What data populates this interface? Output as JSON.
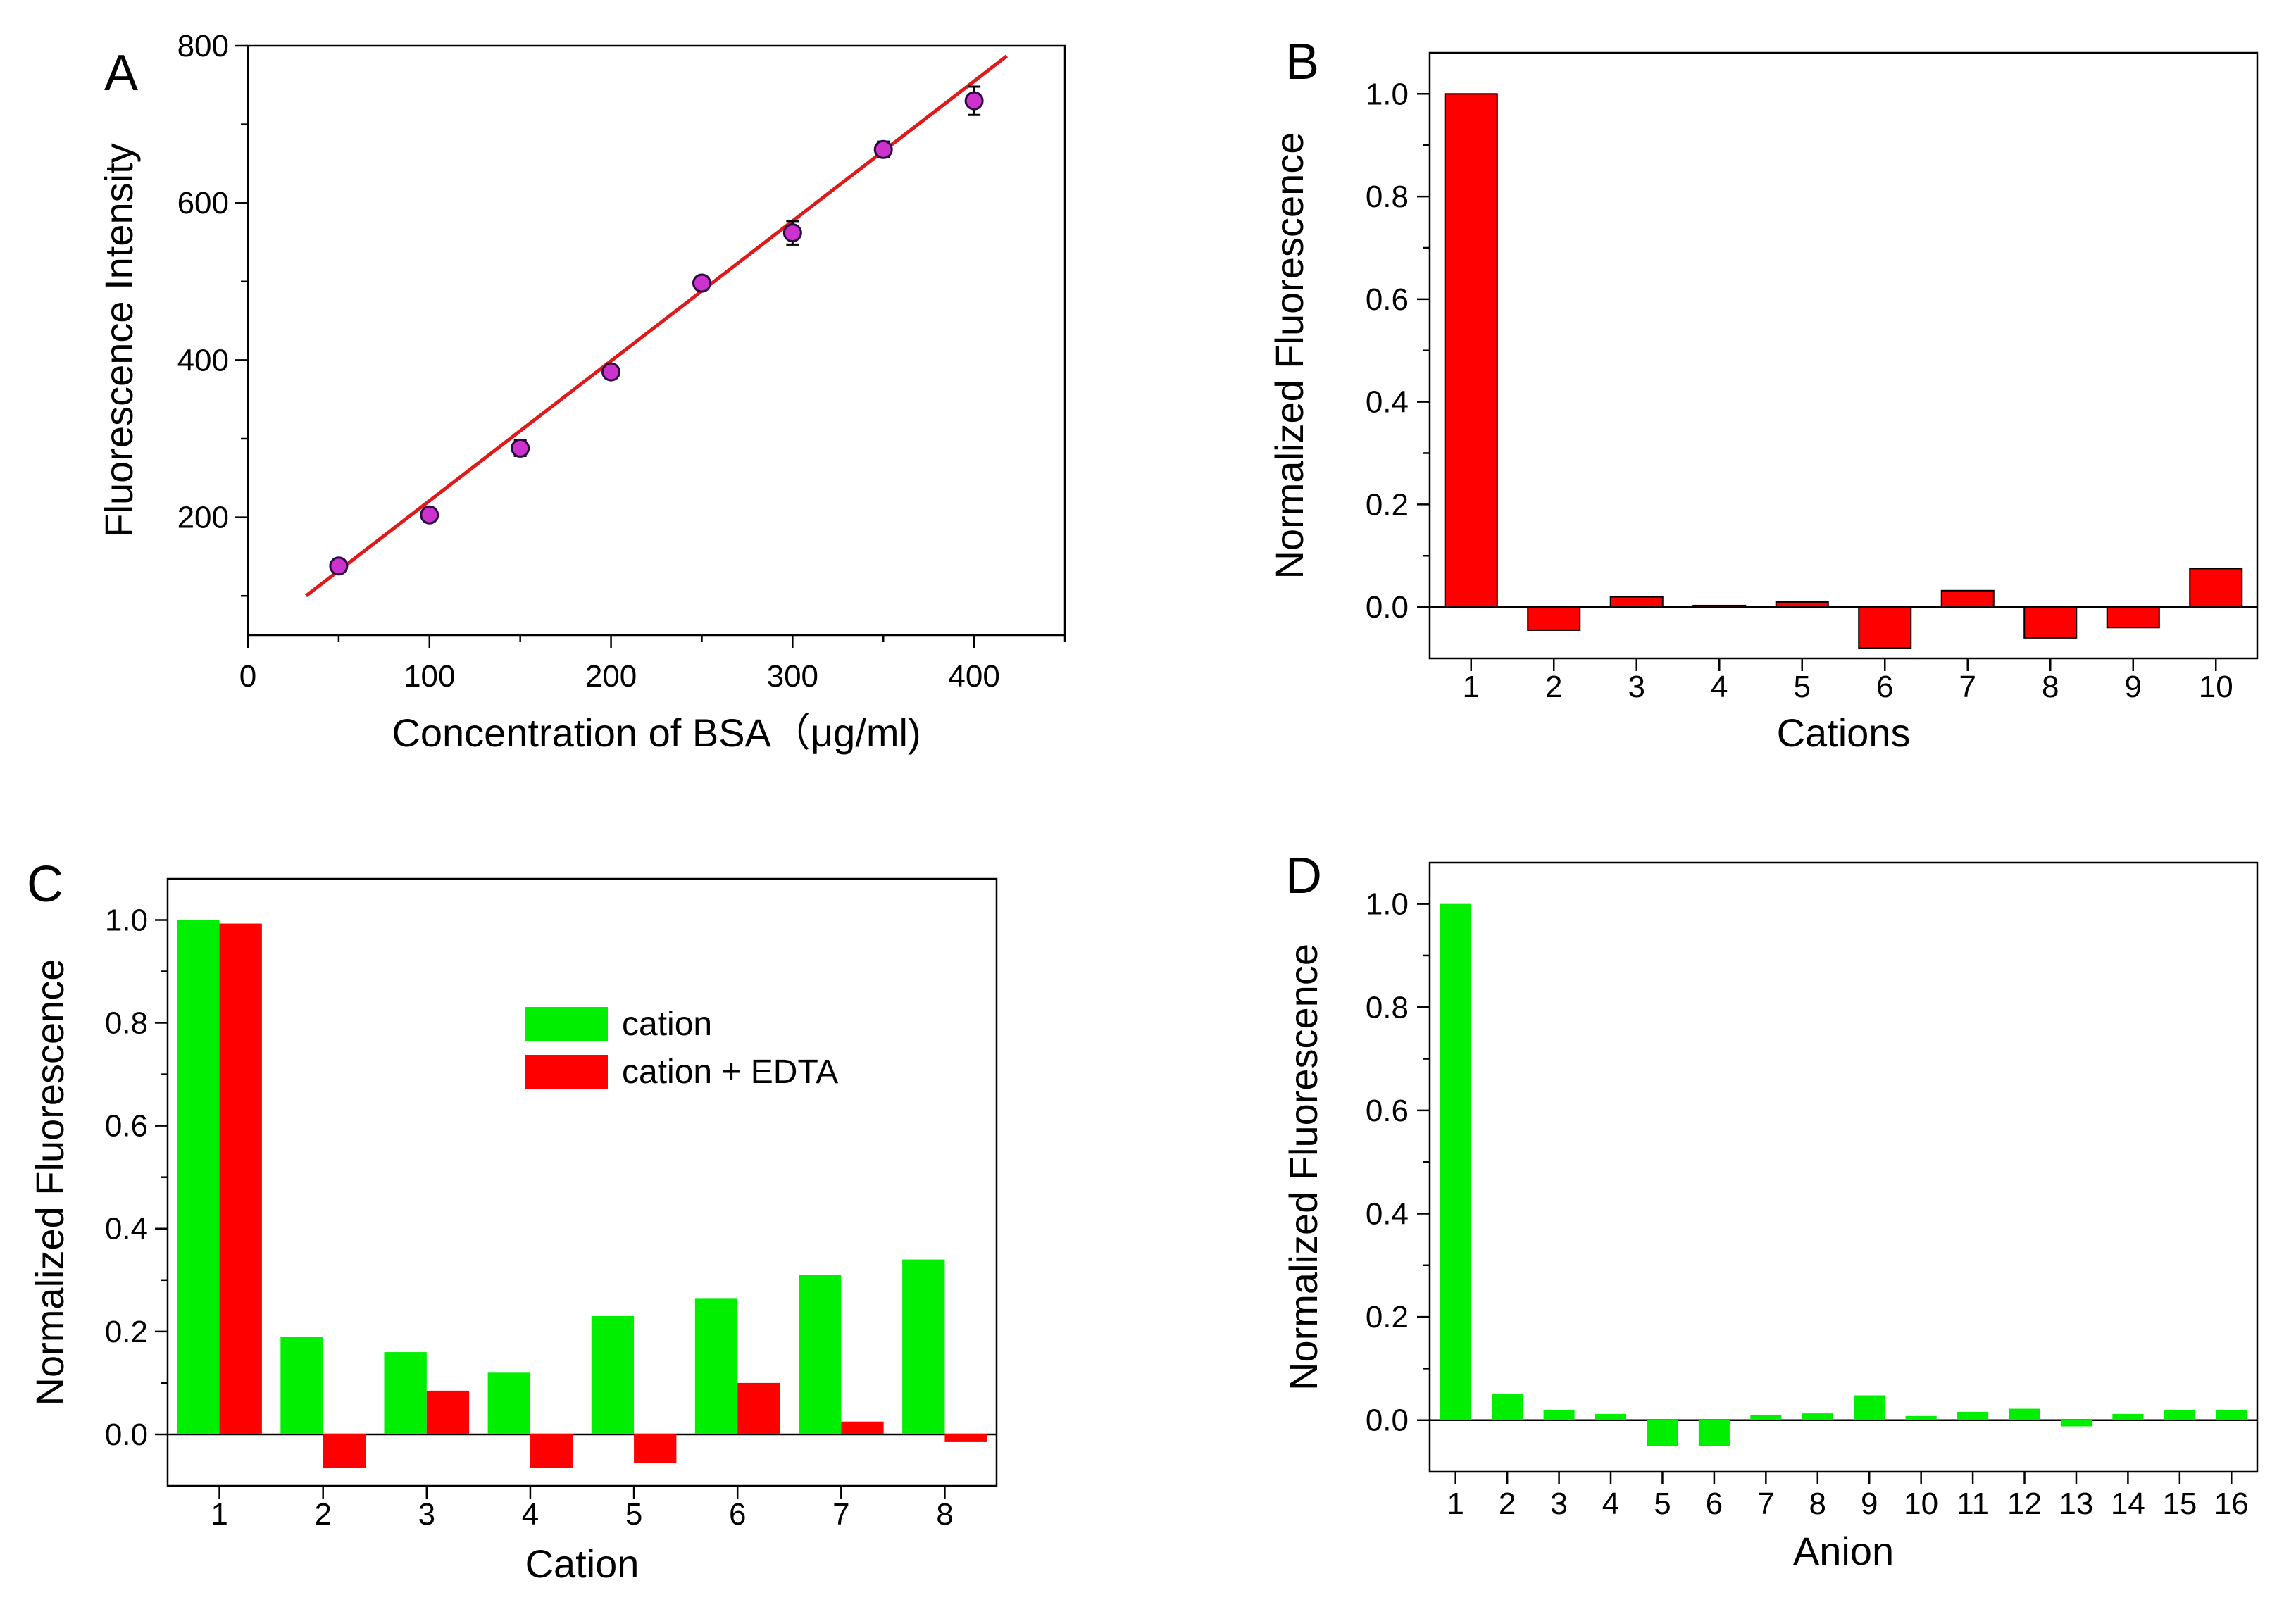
{
  "chart_data": [
    {
      "panel": "A",
      "type": "scatter",
      "xlabel": "Concentration of BSA（μg/ml)",
      "ylabel": "Fluorescence Intensity",
      "xlim": [
        0,
        450
      ],
      "ylim": [
        50,
        800
      ],
      "xticks": [
        0,
        100,
        200,
        300,
        400
      ],
      "yticks": [
        200,
        400,
        600,
        800
      ],
      "x": [
        50,
        100,
        150,
        200,
        250,
        300,
        350,
        400
      ],
      "y": [
        138,
        203,
        288,
        385,
        498,
        562,
        668,
        730
      ],
      "error": [
        8,
        8,
        10,
        8,
        8,
        15,
        10,
        18
      ],
      "fit_line": {
        "x": [
          32,
          418
        ],
        "y": [
          100,
          787
        ],
        "color": "#e01a1a"
      },
      "marker_color": "#cc33cc"
    },
    {
      "panel": "B",
      "type": "bar",
      "xlabel": "Cations",
      "ylabel": "Normalized Fluorescence",
      "categories": [
        "1",
        "2",
        "3",
        "4",
        "5",
        "6",
        "7",
        "8",
        "9",
        "10"
      ],
      "values": [
        1.0,
        -0.045,
        0.02,
        0.003,
        0.01,
        -0.08,
        0.032,
        -0.06,
        -0.04,
        0.075
      ],
      "ylim": [
        -0.1,
        1.08
      ],
      "yticks": [
        "0.0",
        "0.2",
        "0.4",
        "0.6",
        "0.8",
        "1.0"
      ],
      "color": "#ff0000"
    },
    {
      "panel": "C",
      "type": "bar",
      "xlabel": "Cation",
      "ylabel": "Normalized Fluorescence",
      "categories": [
        "1",
        "2",
        "3",
        "4",
        "5",
        "6",
        "7",
        "8"
      ],
      "series": [
        {
          "name": "cation",
          "color": "#00ee00",
          "values": [
            1.0,
            0.19,
            0.16,
            0.12,
            0.23,
            0.265,
            0.31,
            0.34
          ]
        },
        {
          "name": "cation + EDTA",
          "color": "#ff0000",
          "values": [
            0.993,
            -0.065,
            0.085,
            -0.065,
            -0.055,
            0.1,
            0.025,
            -0.015
          ]
        }
      ],
      "ylim": [
        -0.1,
        1.08
      ],
      "yticks": [
        "0.0",
        "0.2",
        "0.4",
        "0.6",
        "0.8",
        "1.0"
      ]
    },
    {
      "panel": "D",
      "type": "bar",
      "xlabel": "Anion",
      "ylabel": "Normalized Fluorescence",
      "categories": [
        "1",
        "2",
        "3",
        "4",
        "5",
        "6",
        "7",
        "8",
        "9",
        "10",
        "11",
        "12",
        "13",
        "14",
        "15",
        "16"
      ],
      "values": [
        1.0,
        0.05,
        0.02,
        0.012,
        -0.05,
        -0.05,
        0.01,
        0.013,
        0.048,
        0.008,
        0.016,
        0.022,
        -0.012,
        0.012,
        0.02,
        0.02
      ],
      "ylim": [
        -0.1,
        1.08
      ],
      "yticks": [
        "0.0",
        "0.2",
        "0.4",
        "0.6",
        "0.8",
        "1.0"
      ],
      "color": "#00ee00"
    }
  ]
}
